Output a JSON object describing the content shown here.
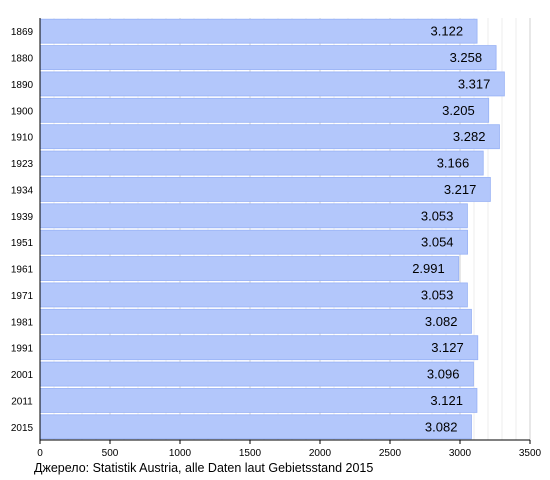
{
  "chart_data": {
    "type": "bar",
    "orientation": "horizontal",
    "categories": [
      "1869",
      "1880",
      "1890",
      "1900",
      "1910",
      "1923",
      "1934",
      "1939",
      "1951",
      "1961",
      "1971",
      "1981",
      "1991",
      "2001",
      "2011",
      "2015"
    ],
    "values": [
      3122,
      3258,
      3317,
      3205,
      3282,
      3166,
      3217,
      3053,
      3054,
      2991,
      3053,
      3082,
      3127,
      3096,
      3121,
      3082
    ],
    "data_labels": [
      "3.122",
      "3.258",
      "3.317",
      "3.205",
      "3.282",
      "3.166",
      "3.217",
      "3.053",
      "3.054",
      "2.991",
      "3.053",
      "3.082",
      "3.127",
      "3.096",
      "3.121",
      "3.082"
    ],
    "x_ticks": [
      0,
      500,
      1000,
      1500,
      2000,
      2500,
      3000,
      3500
    ],
    "xlim": [
      0,
      3500
    ],
    "grid": "vertical",
    "bar_color": "#b3c7fb",
    "bar_edge_color": "#97b1f5"
  },
  "source": "Джерело: Statistik Austria, alle Daten laut Gebietsstand 2015"
}
